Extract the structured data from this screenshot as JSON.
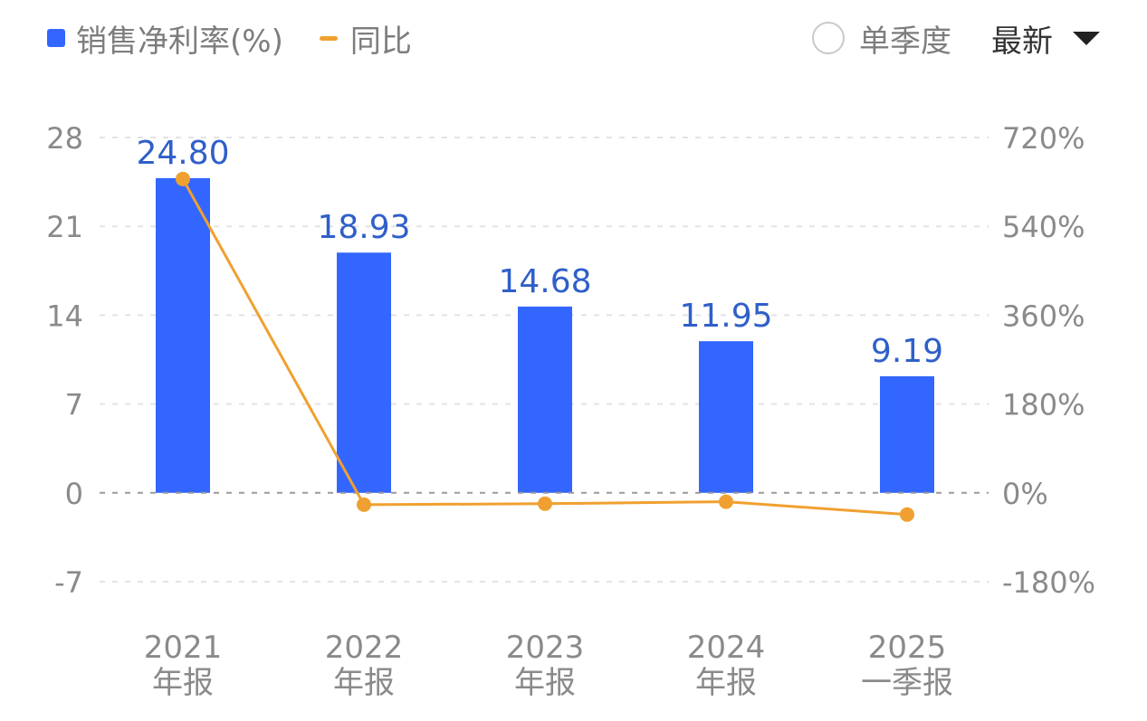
{
  "legend": {
    "bar_label": "销售净利率(%)",
    "line_label": "同比"
  },
  "controls": {
    "single_quarter_label": "单季度",
    "single_quarter_checked": false,
    "period_select_label": "最新"
  },
  "colors": {
    "bar": "#3366ff",
    "line": "#f0a030",
    "value_label": "#2f5fc9",
    "axis_text": "#8a8a8a",
    "grid": "#e3e3e3",
    "zero_line": "#9a9a9a"
  },
  "chart_data": {
    "type": "bar",
    "categories": [
      [
        "2021",
        "年报"
      ],
      [
        "2022",
        "年报"
      ],
      [
        "2023",
        "年报"
      ],
      [
        "2024",
        "年报"
      ],
      [
        "2025",
        "一季报"
      ]
    ],
    "series": [
      {
        "name": "销售净利率(%)",
        "type": "bar",
        "axis": "left",
        "values": [
          24.8,
          18.93,
          14.68,
          11.95,
          9.19
        ],
        "labels": [
          "24.80",
          "18.93",
          "14.68",
          "11.95",
          "9.19"
        ]
      },
      {
        "name": "同比",
        "type": "line",
        "axis": "right",
        "values": [
          636,
          -24,
          -22,
          -18,
          -44
        ]
      }
    ],
    "y_left": {
      "ticks": [
        28,
        21,
        14,
        7,
        0,
        -7
      ],
      "tick_labels": [
        "28",
        "21",
        "14",
        "7",
        "0",
        "-7"
      ],
      "range": [
        -7,
        28
      ]
    },
    "y_right": {
      "ticks": [
        720,
        540,
        360,
        180,
        0,
        -180
      ],
      "tick_labels": [
        "720%",
        "540%",
        "360%",
        "180%",
        "0%",
        "-180%"
      ],
      "range": [
        -180,
        720
      ]
    },
    "grid": true,
    "legend_position": "top-left"
  }
}
